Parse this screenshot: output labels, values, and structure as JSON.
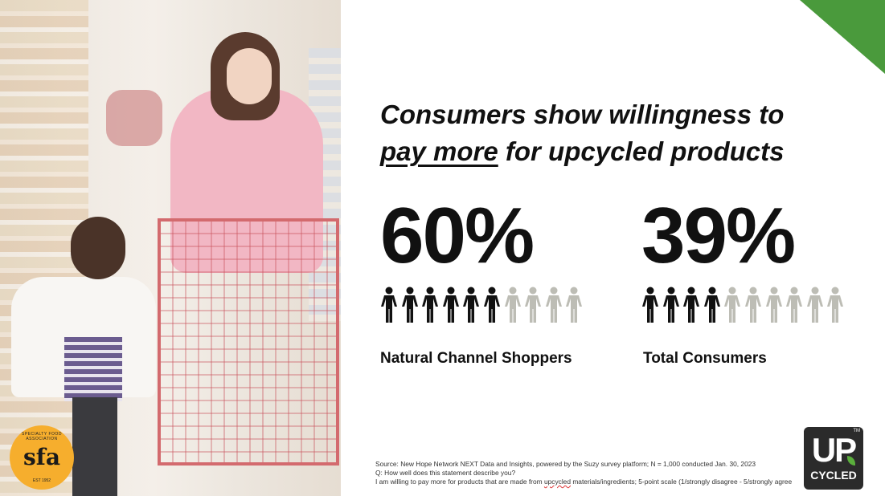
{
  "slide": {
    "title_line1": "Consumers show willingness to",
    "title_underlined": "pay more",
    "title_line2_rest": " for upcycled products",
    "stats": [
      {
        "value": "60%",
        "label": "Natural Channel Shoppers",
        "filled_of_ten": 6
      },
      {
        "value": "39%",
        "label": "Total Consumers",
        "filled_of_ten": 4
      }
    ],
    "colors": {
      "filled_person": "#111111",
      "empty_person": "#bdbdb5",
      "accent_green": "#4a9a3c",
      "sfa_yellow": "#f6ae2d"
    },
    "source": {
      "line1": "Source: New Hope Network NEXT Data and Insights, powered by the Suzy survey platform; N = 1,000 conducted Jan. 30, 2023",
      "line2": "Q: How well does this statement describe you?",
      "line3_a": "I am willing to pay more for products that are made from ",
      "line3_flag": "upcycled",
      "line3_b": " materials/ingredients; 5-point scale (1/strongly disagree - 5/strongly agree"
    },
    "logos": {
      "sfa": {
        "main": "sfa",
        "ring": "SPECIALTY FOOD ASSOCIATION",
        "est": "EST 1952"
      },
      "upcycled": {
        "top": "UP",
        "bottom": "CYCLED",
        "tm": "TM"
      }
    },
    "icon": "person-icon"
  }
}
